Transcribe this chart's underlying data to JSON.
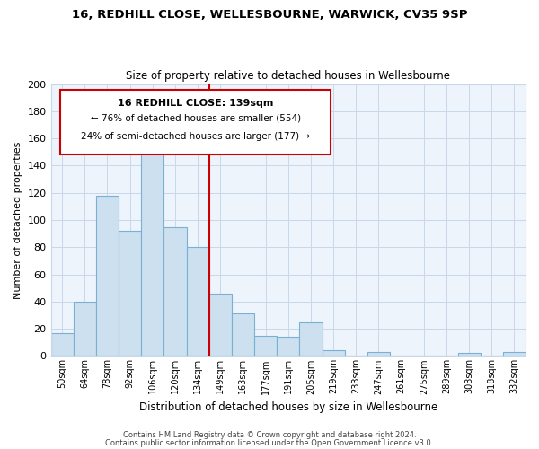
{
  "title1": "16, REDHILL CLOSE, WELLESBOURNE, WARWICK, CV35 9SP",
  "title2": "Size of property relative to detached houses in Wellesbourne",
  "xlabel": "Distribution of detached houses by size in Wellesbourne",
  "ylabel": "Number of detached properties",
  "footnote1": "Contains HM Land Registry data © Crown copyright and database right 2024.",
  "footnote2": "Contains public sector information licensed under the Open Government Licence v3.0.",
  "bar_labels": [
    "50sqm",
    "64sqm",
    "78sqm",
    "92sqm",
    "106sqm",
    "120sqm",
    "134sqm",
    "149sqm",
    "163sqm",
    "177sqm",
    "191sqm",
    "205sqm",
    "219sqm",
    "233sqm",
    "247sqm",
    "261sqm",
    "275sqm",
    "289sqm",
    "303sqm",
    "318sqm",
    "332sqm"
  ],
  "bar_values": [
    17,
    40,
    118,
    92,
    167,
    95,
    80,
    46,
    31,
    15,
    14,
    25,
    4,
    0,
    3,
    0,
    0,
    0,
    2,
    0,
    3
  ],
  "bar_color": "#cce0f0",
  "bar_edge_color": "#7ab0d4",
  "vline_x": 7.0,
  "vline_color": "#cc0000",
  "annotation_line1": "16 REDHILL CLOSE: 139sqm",
  "annotation_line2": "← 76% of detached houses are smaller (554)",
  "annotation_line3": "24% of semi-detached houses are larger (177) →",
  "box_edge_color": "#cc0000",
  "ylim": [
    0,
    200
  ],
  "yticks": [
    0,
    20,
    40,
    60,
    80,
    100,
    120,
    140,
    160,
    180,
    200
  ],
  "plot_bg_color": "#eef4fb",
  "background_color": "#ffffff",
  "grid_color": "#c8d8e8"
}
